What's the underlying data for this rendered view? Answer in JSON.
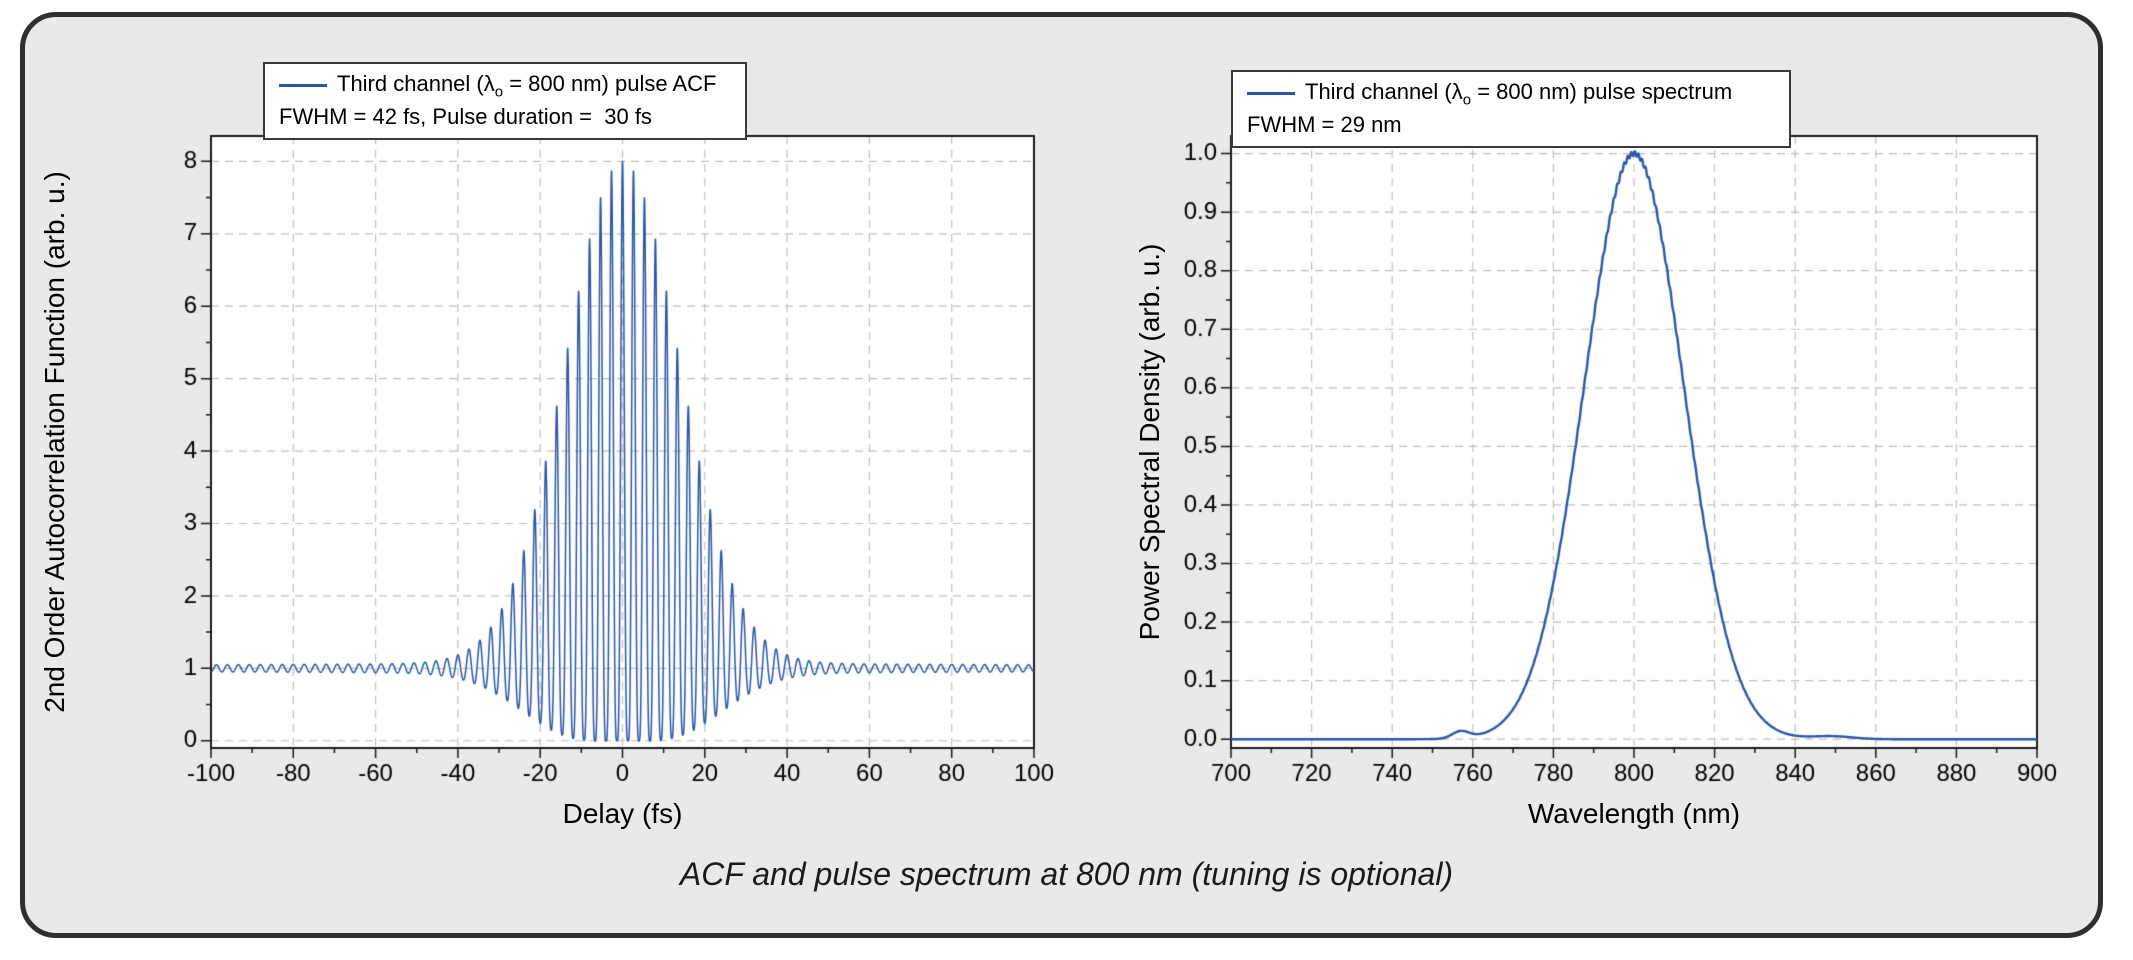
{
  "figure": {
    "caption": "ACF and pulse spectrum at 800 nm (tuning is optional)",
    "background_color": "#e9e9ea",
    "border_color": "#2f2f2f",
    "curve_color": "#2a57a8",
    "grid_color": "#c0c0c0"
  },
  "chart_data": [
    {
      "type": "line",
      "title": "",
      "xlabel": "Delay (fs)",
      "ylabel": "2nd Order Autocorrelation Function (arb. u.)",
      "xlim": [
        -100,
        100
      ],
      "ylim_draw": [
        -0.1,
        8.35
      ],
      "xticks": [
        -100,
        -80,
        -60,
        -40,
        -20,
        0,
        20,
        40,
        60,
        80,
        100
      ],
      "xticklabels": [
        "-100",
        "-80",
        "-60",
        "-40",
        "-20",
        "0",
        "20",
        "40",
        "60",
        "80",
        "100"
      ],
      "yticks": [
        0,
        1,
        2,
        3,
        4,
        5,
        6,
        7,
        8
      ],
      "yticklabels": [
        "0",
        "1",
        "2",
        "3",
        "4",
        "5",
        "6",
        "7",
        "8"
      ],
      "minor_x": 10,
      "minor_y": 0.5,
      "grid": "dashed",
      "legend": {
        "position": "top-left",
        "line1_pre": "Third channel (λ",
        "line1_sub": "o",
        "line1_post": " = 800 nm) pulse ACF",
        "line2": "FWHM = 42 fs, Pulse duration =  30 fs"
      },
      "signal": {
        "kind": "interferometric_autocorrelation",
        "baseline": 1,
        "peak": 8,
        "acf_fwhm_fs": 42,
        "pulse_fwhm_fs": 30,
        "carrier_wavelength_nm": 800,
        "fringe_period_fs": 2.667,
        "wing_amp": 0.08,
        "wing_decay_fs": 200,
        "sample_step_fs": 0.04,
        "envelope_delays_fs": [
          0,
          10,
          20,
          30,
          40,
          50,
          60,
          80,
          100
        ],
        "envelope_upper": [
          8.0,
          6.38,
          3.46,
          1.69,
          1.12,
          1.01,
          1.0,
          1.0,
          1.0
        ],
        "envelope_lower": [
          0.0,
          0.03,
          0.29,
          0.69,
          0.92,
          0.99,
          1.0,
          1.0,
          1.0
        ]
      }
    },
    {
      "type": "line",
      "title": "",
      "xlabel": "Wavelength (nm)",
      "ylabel": "Power Spectral Density (arb. u.)",
      "xlim": [
        700,
        900
      ],
      "ylim_draw": [
        -0.015,
        1.03
      ],
      "xticks": [
        700,
        720,
        740,
        760,
        780,
        800,
        820,
        840,
        860,
        880,
        900
      ],
      "xticklabels": [
        "700",
        "720",
        "740",
        "760",
        "780",
        "800",
        "820",
        "840",
        "860",
        "880",
        "900"
      ],
      "yticks": [
        0,
        0.1,
        0.2,
        0.3,
        0.4,
        0.5,
        0.6,
        0.7,
        0.8,
        0.9,
        1.0
      ],
      "yticklabels": [
        "0.0",
        "0.1",
        "0.2",
        "0.3",
        "0.4",
        "0.5",
        "0.6",
        "0.7",
        "0.8",
        "0.9",
        "1.0"
      ],
      "minor_x": 10,
      "minor_y": 0.05,
      "grid": "dashed",
      "legend": {
        "position": "top-left",
        "line1_pre": "Third channel (λ",
        "line1_sub": "o",
        "line1_post": " = 800 nm) pulse spectrum",
        "line2": "FWHM = 29 nm"
      },
      "signal": {
        "kind": "gaussian_spectrum",
        "center_nm": 800,
        "fwhm_nm": 29,
        "peak": 1.0,
        "satellites": [
          {
            "center_nm": 757,
            "fwhm_nm": 5,
            "amp": 0.012
          },
          {
            "center_nm": 849,
            "fwhm_nm": 12,
            "amp": 0.005
          }
        ],
        "ripple_amp": 0.004,
        "ripple_freq": 7.1,
        "sample_step_nm": 0.1,
        "points_nm": [
          700,
          710,
          720,
          730,
          740,
          750,
          755,
          760,
          765,
          770,
          775,
          780,
          785,
          790,
          795,
          800,
          805,
          810,
          815,
          820,
          825,
          830,
          835,
          840,
          850,
          860,
          880,
          900
        ],
        "points_psd": [
          0,
          0,
          0,
          0,
          0,
          0.0003,
          0.009,
          0.0095,
          0.0176,
          0.0514,
          0.1274,
          0.2674,
          0.4762,
          0.7191,
          0.9209,
          1.0,
          0.9209,
          0.7191,
          0.4762,
          0.2674,
          0.1274,
          0.0514,
          0.0176,
          0.0051,
          0.0053,
          0.001,
          0,
          0
        ]
      }
    }
  ]
}
